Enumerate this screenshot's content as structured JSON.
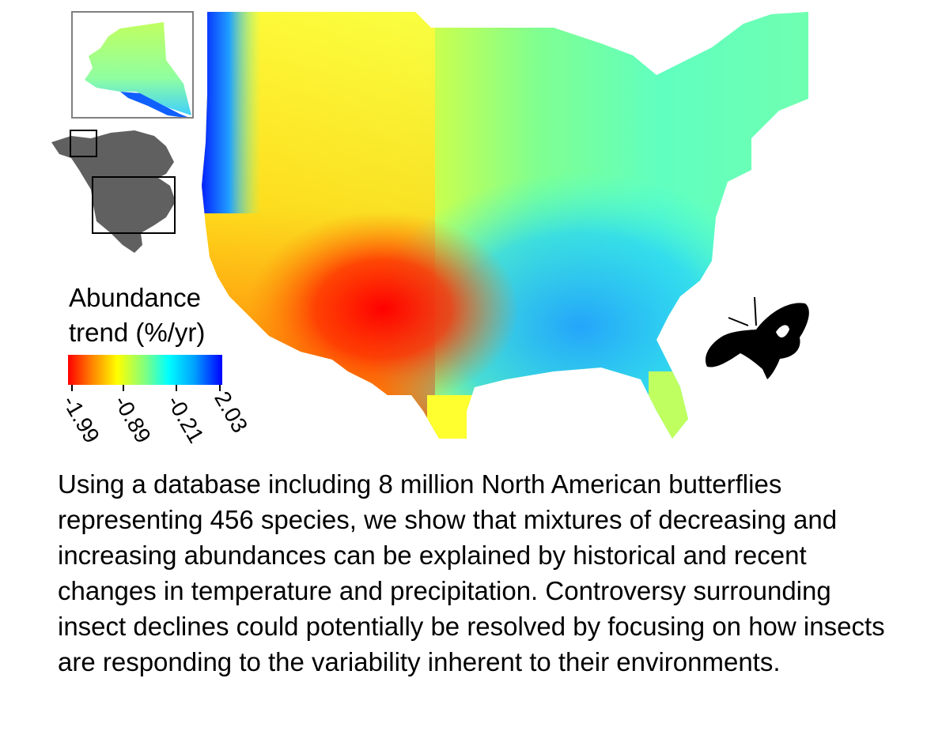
{
  "legend": {
    "title_line1": "Abundance",
    "title_line2": "trend (%/yr)",
    "ticks": [
      "-1.99",
      "-0.89",
      "-0.21",
      "2.03"
    ],
    "colors": [
      "#ff0000",
      "#ff7f00",
      "#ffff00",
      "#80ff80",
      "#00ffff",
      "#00a0ff",
      "#0000ff"
    ]
  },
  "icons": {
    "butterfly": "butterfly-silhouette-icon",
    "locator": "north-america-locator-map"
  },
  "abstract": "Using a database including 8 million North American butterflies representing 456 species, we show that mixtures of decreasing and increasing abundances can be explained by historical and recent changes in temperature and precipitation. Controversy surrounding insect declines could potentially be resolved by focusing on how insects are responding to the variability inherent to their environments."
}
